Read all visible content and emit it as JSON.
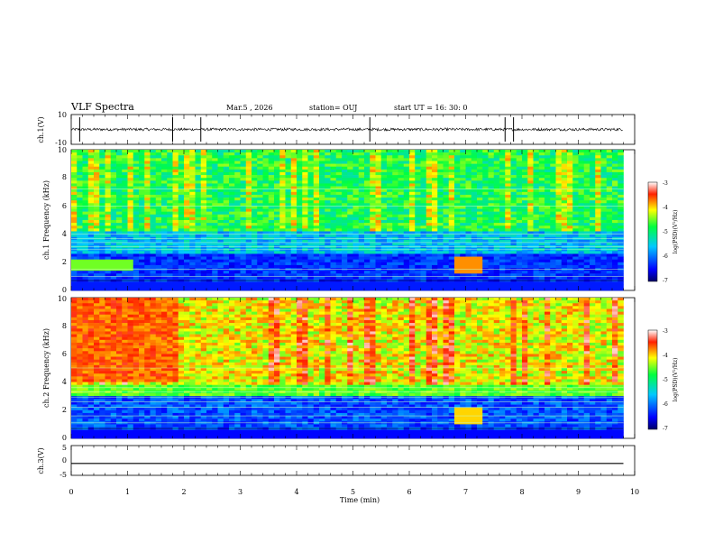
{
  "header": {
    "title": "VLF Spectra",
    "date": "Mar.5 , 2026",
    "station": "station= OUJ",
    "start": "start UT = 16: 30: 0"
  },
  "chart_data": [
    {
      "type": "line",
      "name": "ch1-waveform",
      "ylabel": "ch.1(V)",
      "ylim": [
        -10,
        10
      ],
      "ytick_labels": [
        "10",
        "-10"
      ],
      "xlim": [
        0,
        10
      ],
      "baseline": 0,
      "spikes_min": [
        0.15,
        1.8,
        2.3,
        5.3,
        7.7,
        7.85
      ]
    },
    {
      "type": "heatmap",
      "name": "ch1-spectrogram",
      "ylabel": "ch.1 Frequency (kHz)",
      "ylim": [
        0,
        10
      ],
      "ytick_labels": [
        "0",
        "2",
        "4",
        "6",
        "8",
        "10"
      ],
      "xlim": [
        0,
        9.8
      ],
      "colorbar": {
        "label": "log(PSD)(V²/Hz)",
        "range": [
          -7,
          -3
        ],
        "tick_labels": [
          "-3",
          "-4",
          "-5",
          "-6",
          "-7"
        ]
      }
    },
    {
      "type": "heatmap",
      "name": "ch2-spectrogram",
      "ylabel": "ch.2 Frequency (kHz)",
      "ylim": [
        0,
        10
      ],
      "ytick_labels": [
        "0",
        "2",
        "4",
        "6",
        "8",
        "10"
      ],
      "xlim": [
        0,
        9.8
      ],
      "colorbar": {
        "label": "log(PSD)(V²/Hz)",
        "range": [
          -7,
          -3
        ],
        "tick_labels": [
          "-3",
          "-4",
          "-5",
          "-6",
          "-7"
        ]
      }
    },
    {
      "type": "line",
      "name": "ch3-waveform",
      "ylabel": "ch.3(V)",
      "ylim": [
        -5,
        5
      ],
      "ytick_labels": [
        "5",
        "0",
        "-5"
      ],
      "xlim": [
        0,
        10
      ],
      "baseline": -1
    }
  ],
  "xaxis": {
    "label": "Time (min)",
    "tick_labels": [
      "0",
      "1",
      "2",
      "3",
      "4",
      "5",
      "6",
      "7",
      "8",
      "9",
      "10"
    ]
  },
  "colors": {
    "axes": "#000000",
    "background": "#ffffff"
  }
}
